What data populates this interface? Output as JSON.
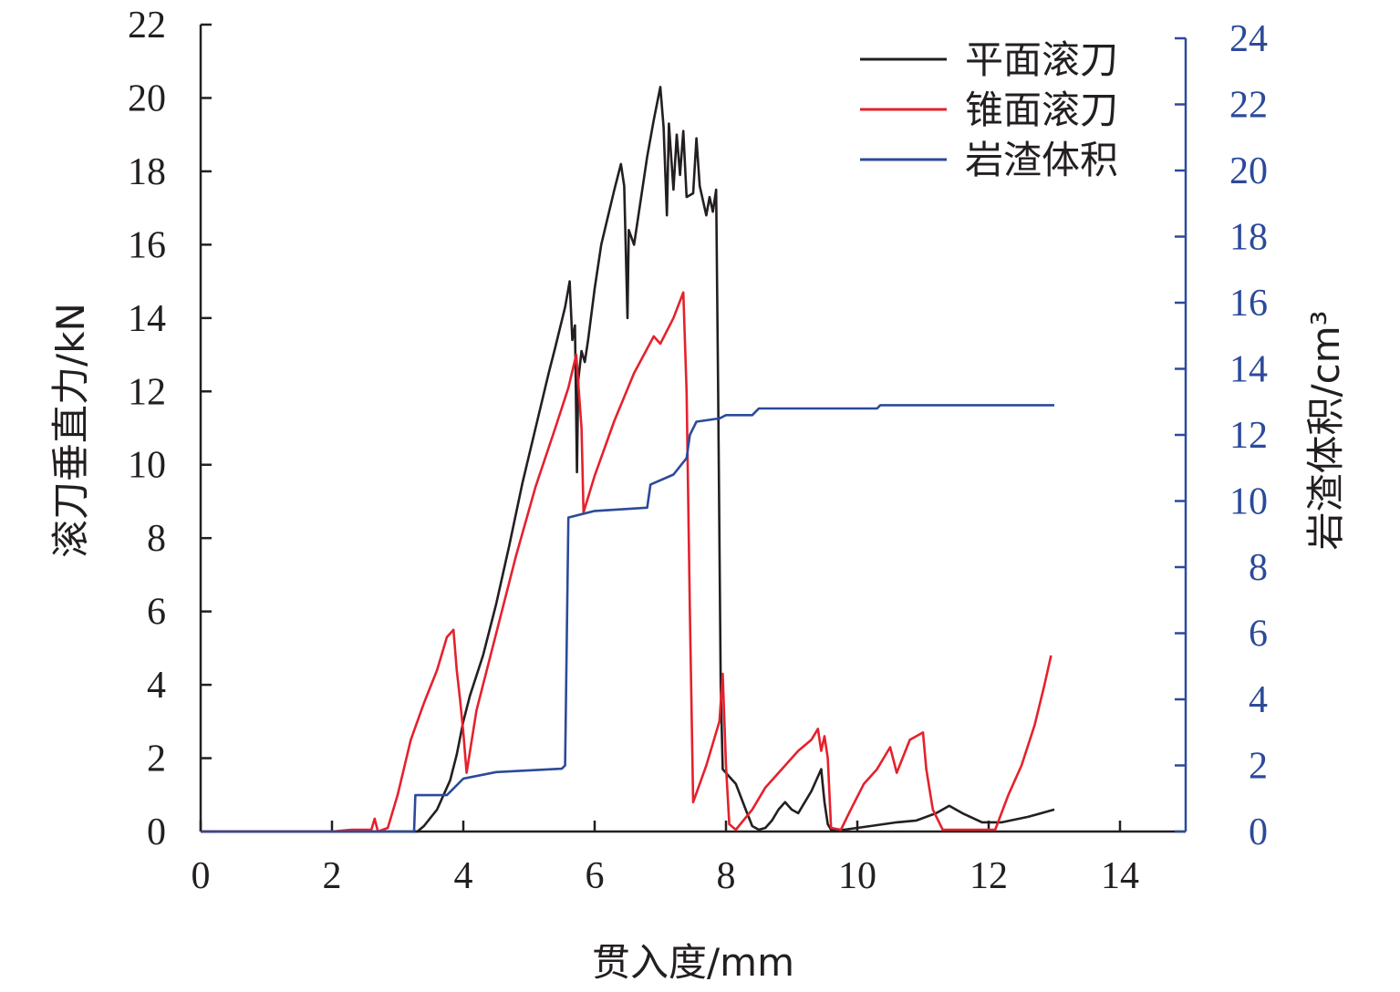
{
  "chart_data": {
    "type": "line",
    "xlabel": "贯入度/mm",
    "ylabel_left": "滚刀垂直力/kN",
    "ylabel_right": "岩渣体积/cm³",
    "xlim": [
      0,
      15
    ],
    "ylim_left": [
      0,
      22
    ],
    "ylim_right": [
      0,
      24
    ],
    "x_ticks": [
      0,
      2,
      4,
      6,
      8,
      10,
      12,
      14
    ],
    "y_left_ticks": [
      0,
      2,
      4,
      6,
      8,
      10,
      12,
      14,
      16,
      18,
      20,
      22
    ],
    "y_right_ticks": [
      0,
      2,
      4,
      6,
      8,
      10,
      12,
      14,
      16,
      18,
      20,
      22,
      24
    ],
    "legend_position": "top-right",
    "colors": {
      "axis": "#231f20",
      "right_axis": "#2b4a9a"
    },
    "series": [
      {
        "name": "平面滚刀",
        "axis": "left",
        "color": "#231f20",
        "points": [
          [
            0,
            0
          ],
          [
            3.3,
            0
          ],
          [
            3.4,
            0.15
          ],
          [
            3.6,
            0.6
          ],
          [
            3.8,
            1.4
          ],
          [
            3.9,
            2.1
          ],
          [
            4.0,
            3.0
          ],
          [
            4.1,
            3.7
          ],
          [
            4.3,
            4.8
          ],
          [
            4.5,
            6.2
          ],
          [
            4.7,
            7.8
          ],
          [
            4.9,
            9.5
          ],
          [
            5.1,
            11.0
          ],
          [
            5.3,
            12.5
          ],
          [
            5.4,
            13.2
          ],
          [
            5.55,
            14.3
          ],
          [
            5.62,
            15.0
          ],
          [
            5.66,
            13.4
          ],
          [
            5.7,
            13.8
          ],
          [
            5.73,
            9.8
          ],
          [
            5.75,
            12.3
          ],
          [
            5.8,
            13.1
          ],
          [
            5.85,
            12.8
          ],
          [
            5.9,
            13.4
          ],
          [
            6.0,
            14.8
          ],
          [
            6.1,
            16.0
          ],
          [
            6.3,
            17.5
          ],
          [
            6.4,
            18.2
          ],
          [
            6.45,
            17.6
          ],
          [
            6.5,
            14.0
          ],
          [
            6.52,
            16.4
          ],
          [
            6.6,
            16.0
          ],
          [
            6.7,
            17.2
          ],
          [
            6.8,
            18.4
          ],
          [
            6.9,
            19.4
          ],
          [
            7.0,
            20.3
          ],
          [
            7.05,
            19.2
          ],
          [
            7.1,
            16.8
          ],
          [
            7.13,
            19.3
          ],
          [
            7.2,
            17.5
          ],
          [
            7.25,
            19.0
          ],
          [
            7.3,
            17.9
          ],
          [
            7.35,
            19.1
          ],
          [
            7.4,
            17.3
          ],
          [
            7.5,
            17.4
          ],
          [
            7.55,
            18.9
          ],
          [
            7.6,
            17.6
          ],
          [
            7.7,
            16.8
          ],
          [
            7.75,
            17.3
          ],
          [
            7.8,
            16.9
          ],
          [
            7.85,
            17.5
          ],
          [
            7.88,
            12.0
          ],
          [
            7.92,
            4.0
          ],
          [
            7.95,
            1.7
          ],
          [
            8.05,
            1.5
          ],
          [
            8.15,
            1.3
          ],
          [
            8.3,
            0.6
          ],
          [
            8.4,
            0.15
          ],
          [
            8.5,
            0.05
          ],
          [
            8.6,
            0.1
          ],
          [
            8.7,
            0.3
          ],
          [
            8.8,
            0.6
          ],
          [
            8.9,
            0.8
          ],
          [
            9.0,
            0.6
          ],
          [
            9.1,
            0.5
          ],
          [
            9.2,
            0.8
          ],
          [
            9.3,
            1.1
          ],
          [
            9.45,
            1.7
          ],
          [
            9.5,
            0.8
          ],
          [
            9.55,
            0.2
          ],
          [
            9.6,
            0.05
          ],
          [
            9.8,
            0.05
          ],
          [
            10.2,
            0.15
          ],
          [
            10.6,
            0.25
          ],
          [
            10.9,
            0.3
          ],
          [
            11.2,
            0.5
          ],
          [
            11.4,
            0.7
          ],
          [
            11.6,
            0.5
          ],
          [
            11.9,
            0.25
          ],
          [
            12.2,
            0.25
          ],
          [
            12.6,
            0.4
          ],
          [
            13.0,
            0.6
          ]
        ]
      },
      {
        "name": "锥面滚刀",
        "axis": "left",
        "color": "#e5212c",
        "points": [
          [
            0,
            0
          ],
          [
            2.0,
            0
          ],
          [
            2.3,
            0.05
          ],
          [
            2.6,
            0.05
          ],
          [
            2.65,
            0.35
          ],
          [
            2.7,
            0
          ],
          [
            2.85,
            0.1
          ],
          [
            3.0,
            1.0
          ],
          [
            3.2,
            2.5
          ],
          [
            3.4,
            3.5
          ],
          [
            3.6,
            4.4
          ],
          [
            3.75,
            5.3
          ],
          [
            3.85,
            5.5
          ],
          [
            3.9,
            4.4
          ],
          [
            3.95,
            3.6
          ],
          [
            4.0,
            2.7
          ],
          [
            4.05,
            1.6
          ],
          [
            4.2,
            3.3
          ],
          [
            4.5,
            5.4
          ],
          [
            4.8,
            7.5
          ],
          [
            5.1,
            9.4
          ],
          [
            5.4,
            11.0
          ],
          [
            5.6,
            12.1
          ],
          [
            5.72,
            13.0
          ],
          [
            5.8,
            11.0
          ],
          [
            5.83,
            8.7
          ],
          [
            6.0,
            9.7
          ],
          [
            6.3,
            11.2
          ],
          [
            6.6,
            12.5
          ],
          [
            6.9,
            13.5
          ],
          [
            7.0,
            13.3
          ],
          [
            7.2,
            14.0
          ],
          [
            7.35,
            14.7
          ],
          [
            7.4,
            12.0
          ],
          [
            7.45,
            6.0
          ],
          [
            7.5,
            0.8
          ],
          [
            7.7,
            1.8
          ],
          [
            7.9,
            3.0
          ],
          [
            7.95,
            4.3
          ],
          [
            8.0,
            1.8
          ],
          [
            8.05,
            0.2
          ],
          [
            8.15,
            0.05
          ],
          [
            8.4,
            0.6
          ],
          [
            8.6,
            1.2
          ],
          [
            8.9,
            1.8
          ],
          [
            9.1,
            2.2
          ],
          [
            9.3,
            2.5
          ],
          [
            9.4,
            2.8
          ],
          [
            9.45,
            2.2
          ],
          [
            9.5,
            2.6
          ],
          [
            9.55,
            2.0
          ],
          [
            9.6,
            0.1
          ],
          [
            9.75,
            0.05
          ],
          [
            9.9,
            0.6
          ],
          [
            10.1,
            1.3
          ],
          [
            10.3,
            1.7
          ],
          [
            10.5,
            2.3
          ],
          [
            10.6,
            1.6
          ],
          [
            10.8,
            2.5
          ],
          [
            11.0,
            2.7
          ],
          [
            11.05,
            1.7
          ],
          [
            11.15,
            0.6
          ],
          [
            11.3,
            0.05
          ],
          [
            12.1,
            0.05
          ],
          [
            12.3,
            1.0
          ],
          [
            12.5,
            1.8
          ],
          [
            12.7,
            2.9
          ],
          [
            12.85,
            4.0
          ],
          [
            12.95,
            4.8
          ]
        ]
      },
      {
        "name": "岩渣体积",
        "axis": "right",
        "color": "#2b4a9a",
        "points": [
          [
            0,
            0
          ],
          [
            3.25,
            0
          ],
          [
            3.27,
            1.1
          ],
          [
            3.75,
            1.1
          ],
          [
            4.0,
            1.6
          ],
          [
            4.5,
            1.8
          ],
          [
            5.5,
            1.9
          ],
          [
            5.55,
            2.0
          ],
          [
            5.6,
            9.5
          ],
          [
            6.0,
            9.7
          ],
          [
            6.8,
            9.8
          ],
          [
            6.85,
            10.5
          ],
          [
            7.2,
            10.8
          ],
          [
            7.4,
            11.3
          ],
          [
            7.45,
            12.0
          ],
          [
            7.55,
            12.4
          ],
          [
            7.9,
            12.5
          ],
          [
            8.0,
            12.6
          ],
          [
            8.4,
            12.6
          ],
          [
            8.5,
            12.8
          ],
          [
            10.3,
            12.8
          ],
          [
            10.35,
            12.9
          ],
          [
            13.0,
            12.9
          ]
        ]
      }
    ]
  }
}
